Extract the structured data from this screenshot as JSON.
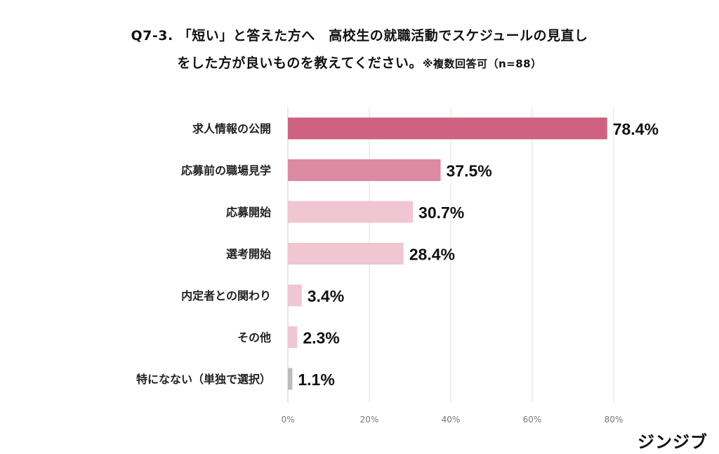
{
  "title_line1": "Q7-3. 「短い」と答えた方へ　高校生の就職活動でスケジュールの見直し",
  "title_line2_main": "をした方が良いものを教えてください。",
  "title_line2_note": "※複数回答可（n=88）",
  "brand": "ジンジブ",
  "chart_data": {
    "type": "bar",
    "orientation": "horizontal",
    "categories": [
      "求人情報の公開",
      "応募前の職場見学",
      "応募開始",
      "選考開始",
      "内定者との関わり",
      "その他",
      "特になない（単独で選択）"
    ],
    "values": [
      78.4,
      37.5,
      30.7,
      28.4,
      3.4,
      2.3,
      1.1
    ],
    "value_labels": [
      "78.4%",
      "37.5%",
      "30.7%",
      "28.4%",
      "3.4%",
      "2.3%",
      "1.1%"
    ],
    "bar_colors": [
      "#cf6283",
      "#dc8aa2",
      "#efc6d2",
      "#efc6d2",
      "#efc6d2",
      "#efc6d2",
      "#bdbdbd"
    ],
    "xlim": [
      0,
      80
    ],
    "xticks": [
      0,
      20,
      40,
      60,
      80
    ],
    "xtick_labels": [
      "0%",
      "20%",
      "40%",
      "60%",
      "80%"
    ],
    "grid": true
  }
}
